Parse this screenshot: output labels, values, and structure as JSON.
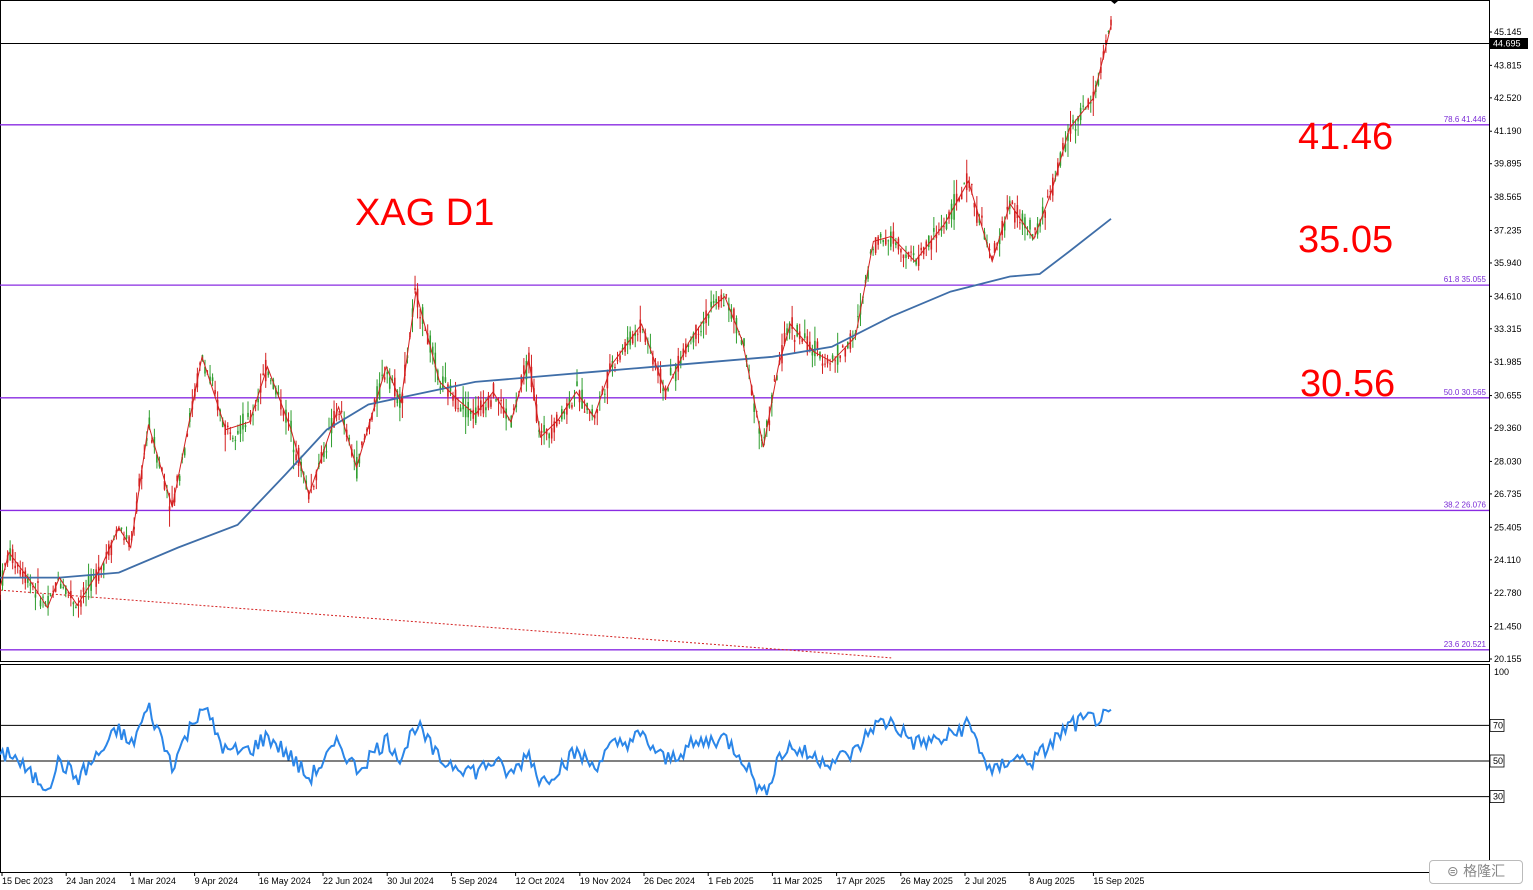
{
  "chart_data": {
    "type": "candlestick",
    "symbol": "XAG D1",
    "main_panel": {
      "ylim": [
        20.155,
        45.145
      ],
      "y_ticks": [
        "45.145",
        "43.815",
        "42.520",
        "41.190",
        "39.895",
        "38.565",
        "37.235",
        "35.940",
        "34.610",
        "33.315",
        "31.985",
        "30.655",
        "29.360",
        "28.030",
        "26.735",
        "25.405",
        "24.110",
        "22.780",
        "21.450",
        "20.155"
      ],
      "current_price": "44.695",
      "fib_levels": [
        {
          "label": "78.6 41.446",
          "value": 41.446
        },
        {
          "label": "61.8 35.055",
          "value": 35.055
        },
        {
          "label": "50.0 30.565",
          "value": 30.565
        },
        {
          "label": "38.2 26.076",
          "value": 26.076
        },
        {
          "label": "23.6 20.521",
          "value": 20.521
        }
      ],
      "annotations": [
        "41.46",
        "35.05",
        "30.56"
      ],
      "price_path": [
        [
          0,
          23.0
        ],
        [
          1.5,
          24.4
        ],
        [
          5,
          23.3
        ],
        [
          8,
          22.2
        ],
        [
          10,
          23.4
        ],
        [
          13,
          22.3
        ],
        [
          17,
          23.8
        ],
        [
          20,
          25.4
        ],
        [
          22,
          24.6
        ],
        [
          25,
          29.5
        ],
        [
          29,
          26.2
        ],
        [
          34,
          32.2
        ],
        [
          38,
          29.3
        ],
        [
          42,
          29.6
        ],
        [
          45,
          31.8
        ],
        [
          49,
          29.3
        ],
        [
          52,
          26.7
        ],
        [
          57,
          30.2
        ],
        [
          60,
          27.8
        ],
        [
          65,
          31.8
        ],
        [
          67.5,
          30.4
        ],
        [
          70,
          34.8
        ],
        [
          74,
          31.2
        ],
        [
          77,
          30.5
        ],
        [
          80,
          29.9
        ],
        [
          83,
          30.8
        ],
        [
          86,
          29.6
        ],
        [
          89,
          32.1
        ],
        [
          91,
          29.0
        ],
        [
          94,
          29.7
        ],
        [
          97,
          30.8
        ],
        [
          100,
          29.8
        ],
        [
          103,
          31.9
        ],
        [
          108,
          33.5
        ],
        [
          112,
          30.8
        ],
        [
          116,
          32.8
        ],
        [
          120,
          34.2
        ],
        [
          122,
          34.6
        ],
        [
          125,
          32.8
        ],
        [
          128.5,
          28.6
        ],
        [
          131,
          31.8
        ],
        [
          133,
          33.5
        ],
        [
          137,
          32.4
        ],
        [
          140,
          32.0
        ],
        [
          144,
          33.0
        ],
        [
          147,
          36.8
        ],
        [
          150,
          37.0
        ],
        [
          154,
          36.0
        ],
        [
          159,
          37.5
        ],
        [
          163,
          39.2
        ],
        [
          167,
          36.0
        ],
        [
          170,
          38.3
        ],
        [
          174,
          36.9
        ],
        [
          177,
          38.8
        ],
        [
          180,
          41.3
        ],
        [
          184,
          42.5
        ],
        [
          187,
          45.4
        ]
      ],
      "ma_path": [
        [
          0,
          23.4
        ],
        [
          10,
          23.4
        ],
        [
          20,
          23.6
        ],
        [
          30,
          24.6
        ],
        [
          40,
          25.5
        ],
        [
          48,
          27.5
        ],
        [
          55,
          29.3
        ],
        [
          62,
          30.3
        ],
        [
          70,
          30.7
        ],
        [
          80,
          31.2
        ],
        [
          90,
          31.4
        ],
        [
          100,
          31.6
        ],
        [
          110,
          31.8
        ],
        [
          120,
          32.0
        ],
        [
          130,
          32.2
        ],
        [
          140,
          32.6
        ],
        [
          150,
          33.8
        ],
        [
          160,
          34.8
        ],
        [
          170,
          35.4
        ],
        [
          175,
          35.5
        ],
        [
          180,
          36.4
        ],
        [
          187,
          37.7
        ]
      ],
      "trend_line": [
        [
          0,
          22.9
        ],
        [
          150,
          20.2
        ]
      ]
    },
    "rsi_panel": {
      "ylim": [
        0,
        100
      ],
      "levels": [
        70,
        50,
        30
      ],
      "y_labels": [
        "100",
        "70",
        "50",
        "30"
      ],
      "rsi_path": [
        [
          0,
          50
        ],
        [
          1.5,
          56
        ],
        [
          5,
          42
        ],
        [
          8,
          36
        ],
        [
          10,
          50
        ],
        [
          13,
          40
        ],
        [
          17,
          55
        ],
        [
          20,
          68
        ],
        [
          22,
          58
        ],
        [
          25,
          80
        ],
        [
          29,
          48
        ],
        [
          34,
          82
        ],
        [
          38,
          55
        ],
        [
          42,
          56
        ],
        [
          45,
          64
        ],
        [
          49,
          52
        ],
        [
          52,
          40
        ],
        [
          57,
          60
        ],
        [
          60,
          45
        ],
        [
          65,
          62
        ],
        [
          67.5,
          52
        ],
        [
          70,
          71
        ],
        [
          74,
          50
        ],
        [
          77,
          48
        ],
        [
          80,
          44
        ],
        [
          83,
          50
        ],
        [
          86,
          42
        ],
        [
          89,
          55
        ],
        [
          91,
          38
        ],
        [
          94,
          46
        ],
        [
          97,
          55
        ],
        [
          100,
          47
        ],
        [
          103,
          58
        ],
        [
          108,
          64
        ],
        [
          112,
          50
        ],
        [
          116,
          58
        ],
        [
          120,
          62
        ],
        [
          122,
          63
        ],
        [
          125,
          52
        ],
        [
          128.5,
          30
        ],
        [
          131,
          52
        ],
        [
          133,
          58
        ],
        [
          137,
          52
        ],
        [
          140,
          50
        ],
        [
          144,
          55
        ],
        [
          147,
          70
        ],
        [
          150,
          72
        ],
        [
          154,
          60
        ],
        [
          159,
          62
        ],
        [
          163,
          71
        ],
        [
          167,
          42
        ],
        [
          170,
          52
        ],
        [
          174,
          50
        ],
        [
          177,
          60
        ],
        [
          180,
          70
        ],
        [
          184,
          74
        ],
        [
          187,
          74
        ]
      ]
    },
    "x_ticks": [
      "15 Dec 2023",
      "24 Jan 2024",
      "1 Mar 2024",
      "9 Apr 2024",
      "16 May 2024",
      "22 Jun 2024",
      "30 Jul 2024",
      "5 Sep 2024",
      "12 Oct 2024",
      "19 Nov 2024",
      "26 Dec 2024",
      "1 Feb 2025",
      "11 Mar 2025",
      "17 Apr 2025",
      "26 May 2025",
      "2 Jul 2025",
      "8 Aug 2025",
      "15 Sep 2025"
    ],
    "colors": {
      "bull": "#2e9e2e",
      "bear": "#d42020",
      "zigzag": "#d42020",
      "ma": "#3f6ea8",
      "fib": "#8a2be2",
      "rsi": "#2b86e8",
      "annotation": "#ff0000"
    }
  },
  "watermark": {
    "text": "格隆汇",
    "icon": "logo-icon"
  }
}
